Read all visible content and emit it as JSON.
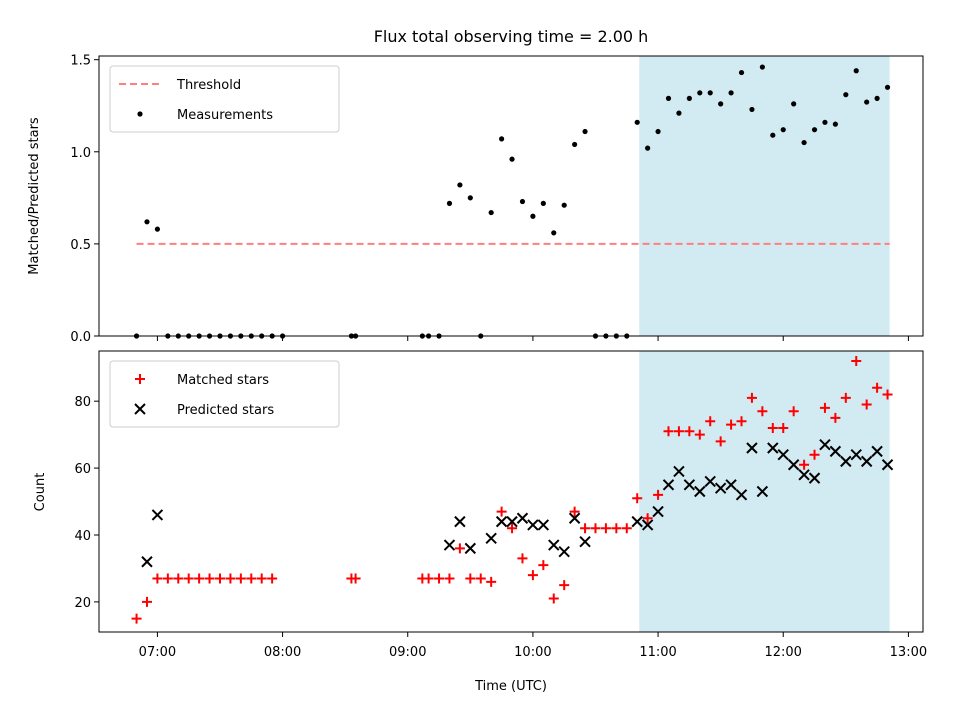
{
  "chart_data": [
    {
      "type": "scatter",
      "title": "Flux total observing time = 2.00 h",
      "xlabel": "",
      "ylabel": "Matched/Predicted stars",
      "xlim": [
        "06:32",
        "13:07"
      ],
      "ylim": [
        0,
        1.52
      ],
      "yticks": [
        0.0,
        0.5,
        1.0,
        1.5
      ],
      "ytick_labels": [
        "0.0",
        "0.5",
        "1.0",
        "1.5"
      ],
      "xticks": [
        "07:00",
        "08:00",
        "09:00",
        "10:00",
        "11:00",
        "12:00",
        "13:00"
      ],
      "highlight_span": [
        "10:51",
        "12:51"
      ],
      "highlight_color": "#add8e6",
      "legend": {
        "placement": "upper-left",
        "entries": [
          "Threshold",
          "Measurements"
        ]
      },
      "series": [
        {
          "name": "Threshold",
          "style": "dashed-line",
          "color": "#ff7f7f",
          "x": [
            "06:50",
            "12:51"
          ],
          "y": [
            0.5,
            0.5
          ]
        },
        {
          "name": "Measurements",
          "style": "dots",
          "color": "#000000",
          "x": [
            "06:50",
            "06:55",
            "07:00",
            "07:05",
            "07:10",
            "07:15",
            "07:20",
            "07:25",
            "07:30",
            "07:35",
            "07:40",
            "07:45",
            "07:50",
            "07:55",
            "08:00",
            "08:33",
            "08:35",
            "09:07",
            "09:10",
            "09:15",
            "09:20",
            "09:25",
            "09:30",
            "09:35",
            "09:40",
            "09:45",
            "09:50",
            "09:55",
            "10:00",
            "10:05",
            "10:10",
            "10:15",
            "10:20",
            "10:25",
            "10:30",
            "10:35",
            "10:40",
            "10:45",
            "10:50",
            "10:55",
            "11:00",
            "11:05",
            "11:10",
            "11:15",
            "11:20",
            "11:25",
            "11:30",
            "11:35",
            "11:40",
            "11:45",
            "11:50",
            "11:55",
            "12:00",
            "12:05",
            "12:10",
            "12:15",
            "12:20",
            "12:25",
            "12:30",
            "12:35",
            "12:40",
            "12:45",
            "12:50"
          ],
          "y": [
            0,
            0.62,
            0.58,
            0,
            0,
            0,
            0,
            0,
            0,
            0,
            0,
            0,
            0,
            0,
            0,
            0,
            0,
            0,
            0,
            0,
            0.72,
            0.82,
            0.75,
            0,
            0.67,
            1.07,
            0.96,
            0.73,
            0.65,
            0.72,
            0.56,
            0.71,
            1.04,
            1.11,
            0,
            0,
            0,
            0,
            1.16,
            1.02,
            1.11,
            1.29,
            1.21,
            1.29,
            1.32,
            1.32,
            1.26,
            1.32,
            1.43,
            1.23,
            1.46,
            1.09,
            1.12,
            1.26,
            1.05,
            1.12,
            1.16,
            1.15,
            1.31,
            1.44,
            1.27,
            1.29,
            1.35
          ]
        }
      ]
    },
    {
      "type": "scatter",
      "xlabel": "Time (UTC)",
      "ylabel": "Count",
      "xlim": [
        "06:32",
        "13:07"
      ],
      "ylim": [
        11,
        95
      ],
      "yticks": [
        20,
        40,
        60,
        80
      ],
      "xticks": [
        "07:00",
        "08:00",
        "09:00",
        "10:00",
        "11:00",
        "12:00",
        "13:00"
      ],
      "highlight_span": [
        "10:51",
        "12:51"
      ],
      "highlight_color": "#add8e6",
      "legend": {
        "placement": "upper-left",
        "entries": [
          "Matched stars",
          "Predicted stars"
        ]
      },
      "series": [
        {
          "name": "Matched stars",
          "marker": "plus",
          "color": "#ff0000",
          "x": [
            "06:50",
            "06:55",
            "07:00",
            "07:05",
            "07:10",
            "07:15",
            "07:20",
            "07:25",
            "07:30",
            "07:35",
            "07:40",
            "07:45",
            "07:50",
            "07:55",
            "08:33",
            "08:35",
            "09:07",
            "09:10",
            "09:15",
            "09:20",
            "09:25",
            "09:30",
            "09:35",
            "09:40",
            "09:45",
            "09:50",
            "09:55",
            "10:00",
            "10:05",
            "10:10",
            "10:15",
            "10:20",
            "10:25",
            "10:30",
            "10:35",
            "10:40",
            "10:45",
            "10:50",
            "10:55",
            "11:00",
            "11:05",
            "11:10",
            "11:15",
            "11:20",
            "11:25",
            "11:30",
            "11:35",
            "11:40",
            "11:45",
            "11:50",
            "11:55",
            "12:00",
            "12:05",
            "12:10",
            "12:15",
            "12:20",
            "12:25",
            "12:30",
            "12:35",
            "12:40",
            "12:45",
            "12:50"
          ],
          "y": [
            15,
            20,
            27,
            27,
            27,
            27,
            27,
            27,
            27,
            27,
            27,
            27,
            27,
            27,
            27,
            27,
            27,
            27,
            27,
            27,
            36,
            27,
            27,
            26,
            47,
            42,
            33,
            28,
            31,
            21,
            25,
            47,
            42,
            42,
            42,
            42,
            42,
            51,
            45,
            52,
            71,
            71,
            71,
            70,
            74,
            68,
            73,
            74,
            81,
            77,
            72,
            72,
            77,
            61,
            64,
            78,
            75,
            81,
            92,
            79,
            84,
            82
          ]
        },
        {
          "name": "Predicted stars",
          "marker": "x",
          "color": "#000000",
          "x": [
            "06:55",
            "07:00",
            "09:20",
            "09:25",
            "09:30",
            "09:40",
            "09:45",
            "09:50",
            "09:55",
            "10:00",
            "10:05",
            "10:10",
            "10:15",
            "10:20",
            "10:25",
            "10:50",
            "10:55",
            "11:00",
            "11:05",
            "11:10",
            "11:15",
            "11:20",
            "11:25",
            "11:30",
            "11:35",
            "11:40",
            "11:45",
            "11:50",
            "11:55",
            "12:00",
            "12:05",
            "12:10",
            "12:15",
            "12:20",
            "12:25",
            "12:30",
            "12:35",
            "12:40",
            "12:45",
            "12:50"
          ],
          "y": [
            32,
            46,
            37,
            44,
            36,
            39,
            44,
            44,
            45,
            43,
            43,
            37,
            35,
            45,
            38,
            44,
            43,
            47,
            55,
            59,
            55,
            53,
            56,
            54,
            55,
            52,
            66,
            53,
            66,
            64,
            61,
            58,
            57,
            67,
            65,
            62,
            64,
            62,
            65,
            61
          ]
        }
      ]
    }
  ]
}
